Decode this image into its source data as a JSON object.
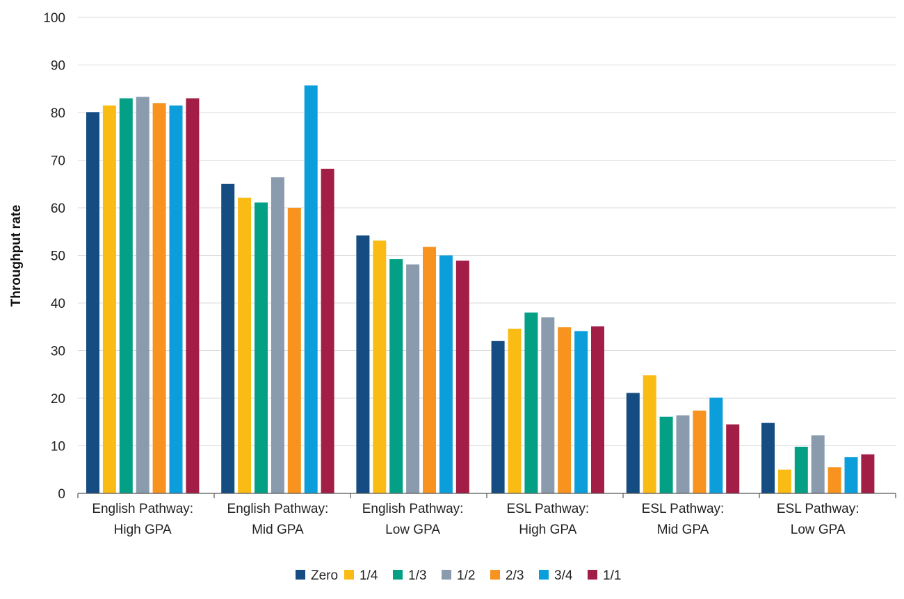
{
  "chart_data": {
    "type": "bar",
    "title": "",
    "xlabel": "",
    "ylabel": "Throughput rate",
    "ylim": [
      0,
      100
    ],
    "yticks": [
      0,
      10,
      20,
      30,
      40,
      50,
      60,
      70,
      80,
      90,
      100
    ],
    "grid": true,
    "legend_position": "bottom-center",
    "categories": [
      [
        "English Pathway:",
        "High GPA"
      ],
      [
        "English Pathway:",
        "Mid GPA"
      ],
      [
        "English Pathway:",
        "Low GPA"
      ],
      [
        "ESL Pathway:",
        "High GPA"
      ],
      [
        "ESL Pathway:",
        "Mid GPA"
      ],
      [
        "ESL Pathway:",
        "Low GPA"
      ]
    ],
    "series": [
      {
        "name": "Zero",
        "color": "#154d82",
        "values": [
          80.1,
          65.0,
          54.2,
          32.0,
          21.1,
          14.8
        ]
      },
      {
        "name": "1/4",
        "color": "#fbbb15",
        "values": [
          81.5,
          62.1,
          53.1,
          34.6,
          24.8,
          5.0
        ]
      },
      {
        "name": "1/3",
        "color": "#04a085",
        "values": [
          83.0,
          61.1,
          49.2,
          38.0,
          16.1,
          9.8
        ]
      },
      {
        "name": "1/2",
        "color": "#8a9bad",
        "values": [
          83.3,
          66.4,
          48.1,
          37.0,
          16.4,
          12.2
        ]
      },
      {
        "name": "2/3",
        "color": "#f7931e",
        "values": [
          82.0,
          60.0,
          51.8,
          34.9,
          17.4,
          5.5
        ]
      },
      {
        "name": "3/4",
        "color": "#0b9edb",
        "values": [
          81.5,
          85.7,
          50.0,
          34.1,
          20.1,
          7.6
        ]
      },
      {
        "name": "1/1",
        "color": "#a31e46",
        "values": [
          83.0,
          68.2,
          48.9,
          35.1,
          14.5,
          8.2
        ]
      }
    ]
  }
}
